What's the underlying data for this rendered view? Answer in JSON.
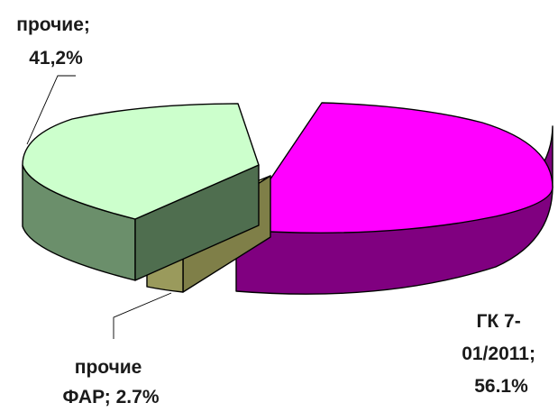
{
  "chart_data": {
    "type": "pie",
    "title": "",
    "slices": [
      {
        "label": "ГК 7-01/2011",
        "value": 56.1,
        "label_text": [
          "ГК 7-",
          "01/2011;",
          "56.1%"
        ],
        "color": "#ff00ff",
        "side_color": "#800080"
      },
      {
        "label": "прочие ФАР",
        "value": 2.7,
        "label_text": [
          "прочие",
          "ФАР; 2.7%"
        ],
        "color": "#ffff99",
        "side_color": "#7f7f48"
      },
      {
        "label": "прочие",
        "value": 41.2,
        "label_text": [
          "прочие;",
          "41,2%"
        ],
        "color": "#ccffcc",
        "side_color": "#6b8f6b"
      }
    ]
  }
}
